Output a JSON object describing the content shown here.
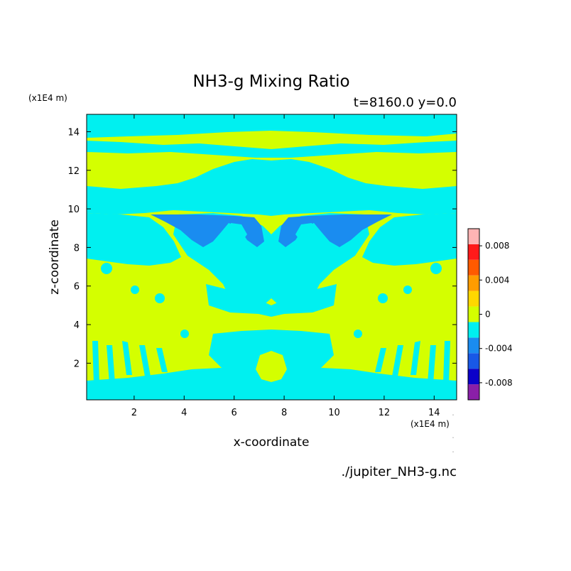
{
  "chart_data": {
    "type": "heatmap",
    "title": "NH3-g Mixing Ratio",
    "subtitle": "t=8160.0 y=0.0",
    "xlabel": "x-coordinate",
    "ylabel": "z-coordinate",
    "x_unit": "(x1E4 m)",
    "y_unit": "(x1E4 m)",
    "xlim": [
      0.1,
      14.9
    ],
    "ylim": [
      0.1,
      14.9
    ],
    "x_ticks": [
      2,
      4,
      6,
      8,
      10,
      12,
      14
    ],
    "y_ticks": [
      2,
      4,
      6,
      8,
      10,
      12,
      14
    ],
    "colorbar": {
      "levels": [
        -0.01,
        -0.008,
        -0.006,
        -0.004,
        -0.002,
        0,
        0.002,
        0.004,
        0.006,
        0.008,
        0.01
      ],
      "colors": [
        "#8a1fa8",
        "#0b00c9",
        "#1858e6",
        "#1a8cf0",
        "#00f0f0",
        "#d4ff00",
        "#ffd800",
        "#ff9c00",
        "#ff5a00",
        "#ff1a1a",
        "#ffb4b4"
      ],
      "tick_labels": [
        "0.008",
        "0.004",
        "0",
        "-0.004",
        "-0.008"
      ],
      "tick_values": [
        0.008,
        0.004,
        0,
        -0.004,
        -0.008
      ]
    },
    "description_of_field": "Contour fill of NH3-g mixing ratio anomaly; mostly values in [0, 0.002) (yellow-green) and [-0.002, 0) (cyan), with a band of [-0.004, -0.002) (blue) near z=8.5-9.6.",
    "footer": "./jupiter_NH3-g.nc",
    "grid": false
  }
}
